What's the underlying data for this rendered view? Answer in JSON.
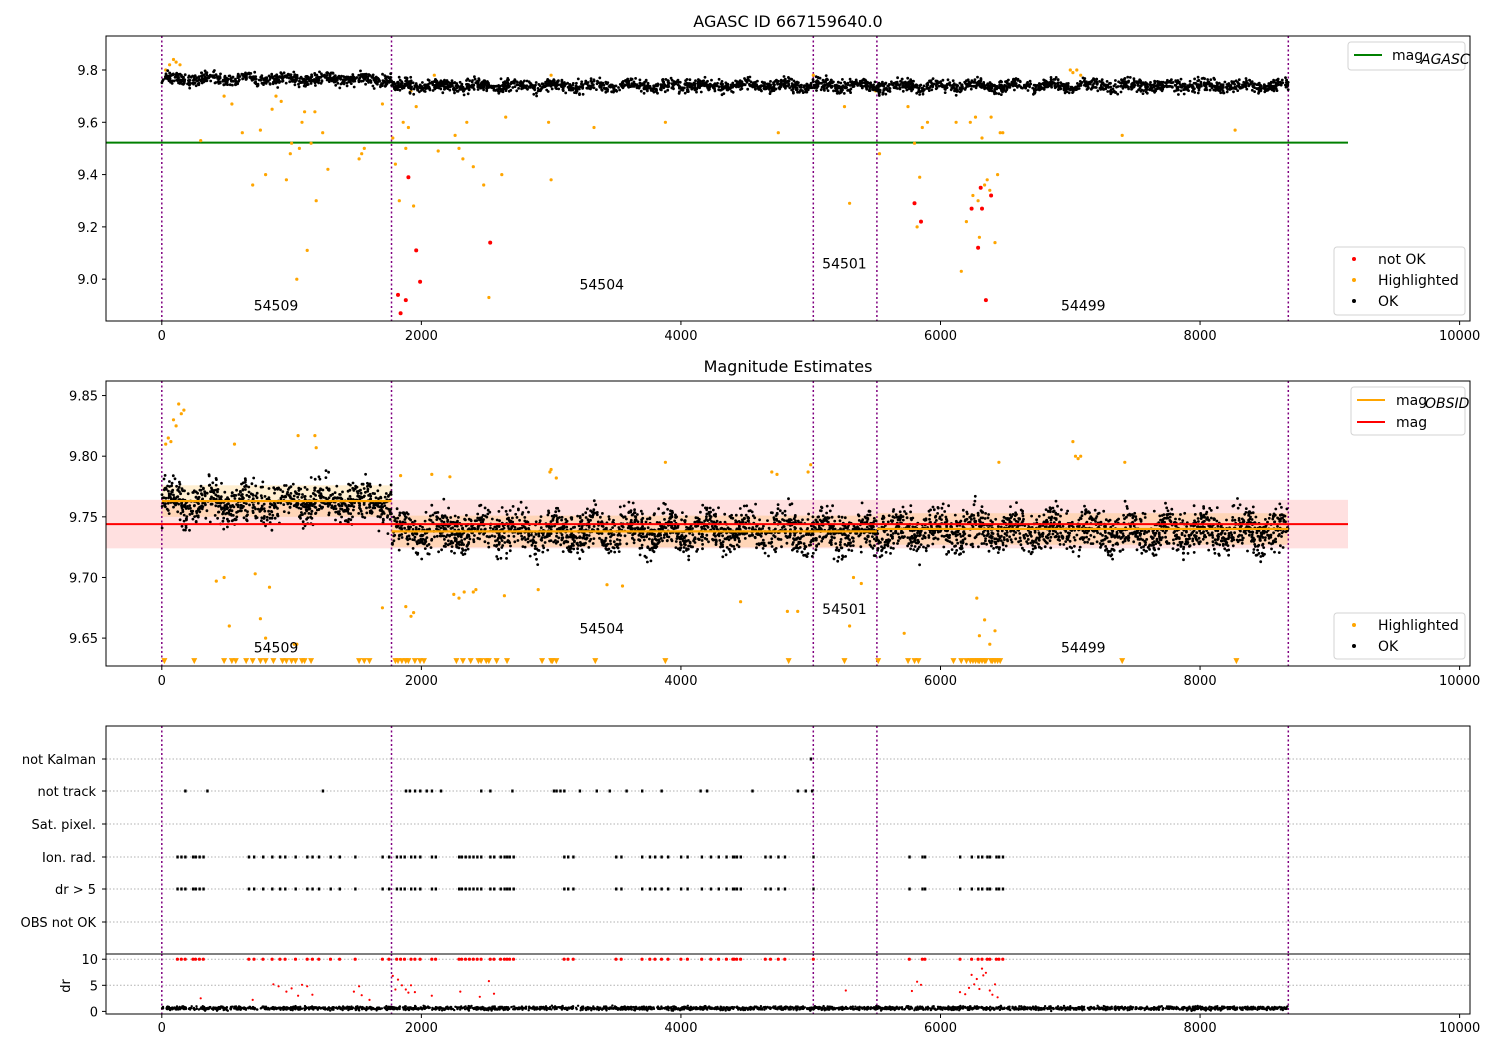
{
  "figure": {
    "background": "#ffffff"
  },
  "colors": {
    "ok": "#000000",
    "highlighted": "#ffa500",
    "not_ok": "#ff0000",
    "mag_agasc": "#008000",
    "mag": "#ff0000",
    "mag_obsid": "#ffa500",
    "obsid_line": "#800080",
    "band": "#ff0000"
  },
  "chart_data": [
    {
      "type": "scatter",
      "title": "AGASC ID 667159640.0",
      "xlim": [
        -430,
        10080
      ],
      "ylim": [
        8.84,
        9.93
      ],
      "xticks": [
        0,
        2000,
        4000,
        6000,
        8000,
        10000
      ],
      "xtick_labels": [
        "0",
        "2000",
        "4000",
        "6000",
        "8000",
        "10000"
      ],
      "yticks": [
        9.0,
        9.2,
        9.4,
        9.6,
        9.8
      ],
      "ytick_labels": [
        "9.0",
        "9.2",
        "9.4",
        "9.6",
        "9.8"
      ],
      "obsid_boundaries": [
        0,
        1770,
        5020,
        5510,
        8680
      ],
      "obsid_labels": [
        {
          "text": "54509",
          "x": 880,
          "y": 8.88
        },
        {
          "text": "54504",
          "x": 3390,
          "y": 8.96
        },
        {
          "text": "54501",
          "x": 5260,
          "y": 9.04
        },
        {
          "text": "54499",
          "x": 7100,
          "y": 8.88
        }
      ],
      "lines": [
        {
          "name": "mag_AGASC",
          "y": 9.522,
          "x": [
            -430,
            9140
          ],
          "color": "#008000"
        }
      ],
      "legend_lines": [
        {
          "label": "mag",
          "sub": "AGASC",
          "color": "#008000"
        }
      ],
      "legend_points": [
        {
          "label": "not OK",
          "color": "#ff0000"
        },
        {
          "label": "Highlighted",
          "color": "#ffa500"
        },
        {
          "label": "OK",
          "color": "#000000"
        }
      ],
      "ok_band": {
        "center": 9.745,
        "amplitude": 0.03,
        "segments": [
          [
            0,
            1770,
            9.765
          ],
          [
            1770,
            8680,
            9.74
          ]
        ]
      },
      "highlighted_points": [
        [
          30,
          9.8
        ],
        [
          60,
          9.82
        ],
        [
          90,
          9.84
        ],
        [
          110,
          9.83
        ],
        [
          140,
          9.82
        ],
        [
          300,
          9.53
        ],
        [
          480,
          9.7
        ],
        [
          540,
          9.67
        ],
        [
          620,
          9.56
        ],
        [
          700,
          9.36
        ],
        [
          760,
          9.57
        ],
        [
          800,
          9.4
        ],
        [
          850,
          9.65
        ],
        [
          880,
          9.7
        ],
        [
          920,
          9.68
        ],
        [
          960,
          9.38
        ],
        [
          990,
          9.48
        ],
        [
          1000,
          9.52
        ],
        [
          1040,
          9.0
        ],
        [
          1060,
          9.5
        ],
        [
          1080,
          9.6
        ],
        [
          1100,
          9.64
        ],
        [
          1120,
          9.11
        ],
        [
          1150,
          9.52
        ],
        [
          1180,
          9.64
        ],
        [
          1190,
          9.3
        ],
        [
          1240,
          9.56
        ],
        [
          1280,
          9.42
        ],
        [
          1520,
          9.46
        ],
        [
          1540,
          9.48
        ],
        [
          1560,
          9.5
        ],
        [
          1700,
          9.67
        ],
        [
          1780,
          9.54
        ],
        [
          1800,
          9.44
        ],
        [
          1830,
          9.3
        ],
        [
          1860,
          9.6
        ],
        [
          1880,
          9.5
        ],
        [
          1900,
          9.58
        ],
        [
          1920,
          9.72
        ],
        [
          1940,
          9.28
        ],
        [
          1960,
          9.66
        ],
        [
          2100,
          9.78
        ],
        [
          2130,
          9.49
        ],
        [
          2260,
          9.55
        ],
        [
          2290,
          9.5
        ],
        [
          2320,
          9.46
        ],
        [
          2350,
          9.6
        ],
        [
          2400,
          9.43
        ],
        [
          2480,
          9.36
        ],
        [
          2520,
          8.93
        ],
        [
          2620,
          9.4
        ],
        [
          2650,
          9.62
        ],
        [
          2980,
          9.6
        ],
        [
          3000,
          9.38
        ],
        [
          3000,
          9.78
        ],
        [
          3330,
          9.58
        ],
        [
          3880,
          9.6
        ],
        [
          4750,
          9.56
        ],
        [
          5020,
          9.78
        ],
        [
          5260,
          9.66
        ],
        [
          5300,
          9.29
        ],
        [
          5500,
          9.72
        ],
        [
          5530,
          9.48
        ],
        [
          5750,
          9.66
        ],
        [
          5800,
          9.52
        ],
        [
          5820,
          9.2
        ],
        [
          5840,
          9.39
        ],
        [
          5860,
          9.58
        ],
        [
          5900,
          9.6
        ],
        [
          6120,
          9.6
        ],
        [
          6160,
          9.03
        ],
        [
          6200,
          9.22
        ],
        [
          6230,
          9.6
        ],
        [
          6250,
          9.32
        ],
        [
          6270,
          9.62
        ],
        [
          6290,
          9.3
        ],
        [
          6300,
          9.16
        ],
        [
          6320,
          9.54
        ],
        [
          6340,
          9.36
        ],
        [
          6360,
          9.38
        ],
        [
          6380,
          9.34
        ],
        [
          6390,
          9.62
        ],
        [
          6420,
          9.14
        ],
        [
          6440,
          9.4
        ],
        [
          6460,
          9.56
        ],
        [
          6480,
          9.56
        ],
        [
          7000,
          9.8
        ],
        [
          7020,
          9.79
        ],
        [
          7050,
          9.8
        ],
        [
          7080,
          9.78
        ],
        [
          7400,
          9.55
        ],
        [
          8270,
          9.57
        ]
      ],
      "not_ok_points": [
        [
          1820,
          8.94
        ],
        [
          1840,
          8.87
        ],
        [
          1880,
          8.92
        ],
        [
          1900,
          9.39
        ],
        [
          1960,
          9.11
        ],
        [
          1990,
          8.99
        ],
        [
          2530,
          9.14
        ],
        [
          5800,
          9.29
        ],
        [
          5850,
          9.22
        ],
        [
          6240,
          9.27
        ],
        [
          6290,
          9.12
        ],
        [
          6310,
          9.35
        ],
        [
          6320,
          9.27
        ],
        [
          6350,
          8.92
        ],
        [
          6390,
          9.32
        ]
      ]
    },
    {
      "type": "scatter",
      "title": "Magnitude Estimates",
      "xlim": [
        -430,
        10080
      ],
      "ylim": [
        9.627,
        9.862
      ],
      "xticks": [
        0,
        2000,
        4000,
        6000,
        8000,
        10000
      ],
      "xtick_labels": [
        "0",
        "2000",
        "4000",
        "6000",
        "8000",
        "10000"
      ],
      "yticks": [
        9.65,
        9.7,
        9.75,
        9.8,
        9.85
      ],
      "ytick_labels": [
        "9.65",
        "9.70",
        "9.75",
        "9.80",
        "9.85"
      ],
      "obsid_boundaries": [
        0,
        1770,
        5020,
        5510,
        8680
      ],
      "obsid_labels": [
        {
          "text": "54509",
          "x": 880,
          "y": 9.638
        },
        {
          "text": "54504",
          "x": 3390,
          "y": 9.654
        },
        {
          "text": "54501",
          "x": 5260,
          "y": 9.67
        },
        {
          "text": "54499",
          "x": 7100,
          "y": 9.638
        }
      ],
      "mag_line": {
        "y": 9.744,
        "x": [
          -430,
          9140
        ],
        "band": [
          9.724,
          9.764
        ],
        "color": "#ff0000"
      },
      "mag_obsid_segments": [
        [
          0,
          1770,
          9.763
        ],
        [
          1770,
          5020,
          9.738
        ],
        [
          5020,
          5510,
          9.738
        ],
        [
          5510,
          8680,
          9.74
        ]
      ],
      "legend_lines": [
        {
          "label": "mag",
          "sub": "OBSID",
          "color": "#ffa500"
        },
        {
          "label": "mag",
          "sub": "",
          "color": "#ff0000"
        }
      ],
      "legend_points": [
        {
          "label": "Highlighted",
          "color": "#ffa500"
        },
        {
          "label": "OK",
          "color": "#000000"
        }
      ],
      "ok_band": {
        "center": 9.742,
        "amplitude": 0.022,
        "segments": [
          [
            0,
            1770,
            9.762
          ],
          [
            1770,
            8680,
            9.738
          ]
        ]
      },
      "highlighted_points": [
        [
          30,
          9.81
        ],
        [
          50,
          9.815
        ],
        [
          70,
          9.812
        ],
        [
          90,
          9.83
        ],
        [
          110,
          9.825
        ],
        [
          130,
          9.843
        ],
        [
          150,
          9.835
        ],
        [
          170,
          9.838
        ],
        [
          420,
          9.697
        ],
        [
          480,
          9.7
        ],
        [
          520,
          9.66
        ],
        [
          560,
          9.81
        ],
        [
          720,
          9.703
        ],
        [
          760,
          9.666
        ],
        [
          800,
          9.65
        ],
        [
          830,
          9.692
        ],
        [
          1020,
          9.645
        ],
        [
          1040,
          9.645
        ],
        [
          1050,
          9.817
        ],
        [
          1180,
          9.817
        ],
        [
          1190,
          9.807
        ],
        [
          1700,
          9.675
        ],
        [
          1840,
          9.784
        ],
        [
          1880,
          9.676
        ],
        [
          1920,
          9.668
        ],
        [
          1940,
          9.671
        ],
        [
          2080,
          9.785
        ],
        [
          2220,
          9.783
        ],
        [
          2250,
          9.686
        ],
        [
          2290,
          9.683
        ],
        [
          2330,
          9.688
        ],
        [
          2400,
          9.688
        ],
        [
          2420,
          9.69
        ],
        [
          2640,
          9.685
        ],
        [
          2900,
          9.69
        ],
        [
          2990,
          9.787
        ],
        [
          3000,
          9.789
        ],
        [
          3040,
          9.782
        ],
        [
          3430,
          9.694
        ],
        [
          3550,
          9.693
        ],
        [
          3880,
          9.795
        ],
        [
          4460,
          9.68
        ],
        [
          4700,
          9.787
        ],
        [
          4740,
          9.785
        ],
        [
          4820,
          9.672
        ],
        [
          4900,
          9.672
        ],
        [
          4980,
          9.787
        ],
        [
          5000,
          9.793
        ],
        [
          5300,
          9.66
        ],
        [
          5330,
          9.7
        ],
        [
          5390,
          9.695
        ],
        [
          5720,
          9.654
        ],
        [
          6280,
          9.683
        ],
        [
          6300,
          9.652
        ],
        [
          6340,
          9.665
        ],
        [
          6380,
          9.645
        ],
        [
          6420,
          9.656
        ],
        [
          6450,
          9.795
        ],
        [
          7020,
          9.812
        ],
        [
          7040,
          9.8
        ],
        [
          7060,
          9.798
        ],
        [
          7080,
          9.8
        ],
        [
          7420,
          9.795
        ]
      ],
      "markers_low": {
        "y": 9.631,
        "x": [
          20,
          250,
          480,
          540,
          570,
          650,
          700,
          760,
          800,
          860,
          930,
          960,
          1000,
          1030,
          1080,
          1100,
          1150,
          1520,
          1560,
          1600,
          1800,
          1820,
          1850,
          1880,
          1900,
          1950,
          1990,
          2020,
          2270,
          2320,
          2380,
          2440,
          2460,
          2500,
          2520,
          2580,
          2660,
          2930,
          3000,
          3010,
          3040,
          3340,
          3880,
          4830,
          5260,
          5520,
          5750,
          5800,
          5830,
          6100,
          6160,
          6200,
          6230,
          6250,
          6270,
          6290,
          6300,
          6320,
          6340,
          6350,
          6390,
          6400,
          6420,
          6440,
          6460,
          7400,
          8280
        ]
      }
    },
    {
      "type": "scatter",
      "xlim": [
        -430,
        10080
      ],
      "yticks_categories": [
        "not Kalman",
        "not track",
        "Sat. pixel.",
        "Ion. rad.",
        "dr > 5",
        "OBS not OK"
      ],
      "obsid_boundaries": [
        0,
        1770,
        5020,
        5510,
        8680
      ],
      "flag_rows": {
        "not_track": [
          180,
          350,
          1240,
          1880,
          1910,
          1950,
          1990,
          2040,
          2080,
          2150,
          2460,
          2530,
          2700,
          3020,
          3040,
          3070,
          3100,
          3220,
          3350,
          3450,
          3580,
          3700,
          3850,
          4150,
          4200,
          4550,
          4900,
          4960,
          5010
        ],
        "ion_rad_dr5": [
          120,
          150,
          180,
          240,
          260,
          290,
          320,
          670,
          710,
          780,
          850,
          910,
          950,
          1030,
          1120,
          1160,
          1210,
          1300,
          1370,
          1490,
          1700,
          1750,
          1810,
          1840,
          1870,
          1920,
          1950,
          1990,
          2080,
          2110,
          2290,
          2310,
          2340,
          2370,
          2400,
          2430,
          2460,
          2530,
          2560,
          2610,
          2640,
          2660,
          2680,
          2710,
          3100,
          3130,
          3170,
          3500,
          3540,
          3700,
          3760,
          3800,
          3850,
          3900,
          4000,
          4050,
          4160,
          4230,
          4290,
          4350,
          4400,
          4410,
          4430,
          4460,
          4650,
          4690,
          4750,
          4800,
          5020,
          5760,
          5860,
          5880,
          6150,
          6240,
          6290,
          6320,
          6360,
          6380,
          6430,
          6450,
          6480
        ]
      },
      "not_kalman": [
        5000
      ],
      "dr": {
        "ylim": [
          -0.5,
          11.0
        ],
        "yticks": [
          0,
          5,
          10
        ],
        "ytick_labels": [
          "0",
          "5",
          "10"
        ],
        "ylabel": "dr",
        "clipped_y": 10,
        "red_points": [
          [
            300,
            2.5
          ],
          [
            700,
            2.2
          ],
          [
            860,
            5.2
          ],
          [
            900,
            4.8
          ],
          [
            960,
            3.8
          ],
          [
            1000,
            4.4
          ],
          [
            1050,
            3.0
          ],
          [
            1080,
            5.1
          ],
          [
            1120,
            4.8
          ],
          [
            1160,
            3.2
          ],
          [
            1480,
            3.8
          ],
          [
            1520,
            4.8
          ],
          [
            1540,
            3.1
          ],
          [
            1600,
            2.2
          ],
          [
            1780,
            6.8
          ],
          [
            1800,
            4.2
          ],
          [
            1820,
            6.1
          ],
          [
            1850,
            5.0
          ],
          [
            1880,
            4.2
          ],
          [
            1900,
            3.6
          ],
          [
            1920,
            5.0
          ],
          [
            1950,
            3.7
          ],
          [
            2080,
            3.0
          ],
          [
            2300,
            3.8
          ],
          [
            2450,
            2.8
          ],
          [
            2520,
            5.8
          ],
          [
            2560,
            3.4
          ],
          [
            5270,
            4.0
          ],
          [
            5780,
            3.9
          ],
          [
            5820,
            5.7
          ],
          [
            5850,
            5.1
          ],
          [
            6150,
            3.7
          ],
          [
            6190,
            3.3
          ],
          [
            6220,
            4.5
          ],
          [
            6240,
            7.0
          ],
          [
            6260,
            5.2
          ],
          [
            6280,
            6.2
          ],
          [
            6300,
            4.3
          ],
          [
            6320,
            8.2
          ],
          [
            6330,
            6.9
          ],
          [
            6350,
            7.4
          ],
          [
            6380,
            4.0
          ],
          [
            6400,
            3.2
          ],
          [
            6420,
            5.2
          ],
          [
            6440,
            2.7
          ]
        ]
      }
    }
  ]
}
